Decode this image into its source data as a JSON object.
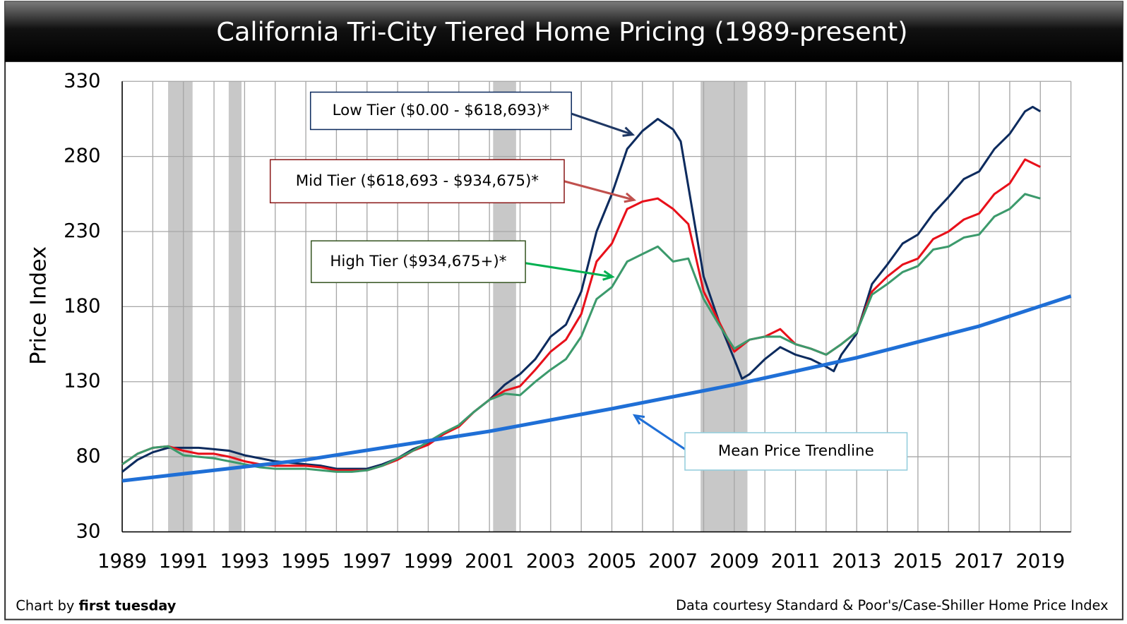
{
  "chart_data": {
    "type": "line",
    "title": "California Tri-City Tiered Home Pricing (1989-present)",
    "y_label": "Price Index",
    "credit_prefix": "Chart by",
    "credit_name": "first tuesday",
    "source": "Data courtesy Standard & Poor's/Case-Shiller Home Price Index",
    "xlim": [
      1989,
      2020
    ],
    "xticks": [
      1989,
      1991,
      1993,
      1995,
      1997,
      1999,
      2001,
      2003,
      2005,
      2007,
      2009,
      2011,
      2013,
      2015,
      2017,
      2019
    ],
    "x_minor_ticks": [
      1990,
      1992,
      1994,
      1996,
      1998,
      2000,
      2002,
      2004,
      2006,
      2008,
      2010,
      2012,
      2014,
      2016,
      2018,
      2020
    ],
    "ylim": [
      30,
      330
    ],
    "yticks": [
      30,
      80,
      130,
      180,
      230,
      280,
      330
    ],
    "grid": true,
    "shaded_periods": [
      [
        1990.5,
        1991.3
      ],
      [
        1992.48,
        1992.9
      ],
      [
        2001.12,
        2001.87
      ],
      [
        2007.9,
        2009.43
      ]
    ],
    "series": [
      {
        "name": "Low Tier ($0.00 - $618,693)*",
        "color": "#0d2b5e",
        "x": [
          1989,
          1989.5,
          1990,
          1990.5,
          1991,
          1991.5,
          1992,
          1992.5,
          1993,
          1993.5,
          1994,
          1994.5,
          1995,
          1995.5,
          1996,
          1996.5,
          1997,
          1997.5,
          1998,
          1998.5,
          1999,
          1999.5,
          2000,
          2000.5,
          2001,
          2001.5,
          2002,
          2002.5,
          2003,
          2003.5,
          2004,
          2004.5,
          2005,
          2005.5,
          2006,
          2006.5,
          2007,
          2007.25,
          2007.5,
          2008,
          2008.5,
          2009,
          2009.25,
          2009.5,
          2010,
          2010.5,
          2011,
          2011.5,
          2012,
          2012.25,
          2012.5,
          2013,
          2013.5,
          2014,
          2014.5,
          2015,
          2015.5,
          2016,
          2016.5,
          2017,
          2017.5,
          2018,
          2018.5,
          2018.75,
          2019
        ],
        "values": [
          70,
          78,
          83,
          86,
          86,
          86,
          85,
          84,
          81,
          79,
          77,
          76,
          75,
          74,
          72,
          72,
          72,
          75,
          79,
          85,
          89,
          95,
          101,
          110,
          118,
          128,
          135,
          145,
          160,
          168,
          190,
          230,
          255,
          285,
          297,
          305,
          298,
          290,
          260,
          200,
          170,
          145,
          132,
          135,
          145,
          153,
          148,
          145,
          140,
          137,
          148,
          162,
          195,
          208,
          222,
          228,
          242,
          253,
          265,
          270,
          285,
          295,
          310,
          313,
          310
        ]
      },
      {
        "name": "Mid Tier ($618,693 - $934,675)*",
        "color": "#e8101a",
        "x": [
          1989,
          1989.5,
          1990,
          1990.5,
          1991,
          1991.5,
          1992,
          1992.5,
          1993,
          1993.5,
          1994,
          1994.5,
          1995,
          1995.5,
          1996,
          1996.5,
          1997,
          1997.5,
          1998,
          1998.5,
          1999,
          1999.5,
          2000,
          2000.5,
          2001,
          2001.5,
          2002,
          2002.5,
          2003,
          2003.5,
          2004,
          2004.5,
          2005,
          2005.5,
          2006,
          2006.5,
          2007,
          2007.5,
          2008,
          2008.5,
          2009,
          2009.5,
          2010,
          2010.5,
          2011,
          2011.5,
          2012,
          2012.5,
          2013,
          2013.5,
          2014,
          2014.5,
          2015,
          2015.5,
          2016,
          2016.5,
          2017,
          2017.5,
          2018,
          2018.5,
          2019
        ],
        "values": [
          75,
          82,
          86,
          87,
          84,
          82,
          82,
          80,
          77,
          75,
          74,
          74,
          74,
          73,
          71,
          71,
          71,
          74,
          78,
          84,
          88,
          95,
          100,
          110,
          118,
          124,
          127,
          138,
          150,
          158,
          175,
          210,
          222,
          245,
          250,
          252,
          245,
          235,
          190,
          170,
          150,
          158,
          160,
          165,
          155,
          152,
          148,
          155,
          163,
          190,
          200,
          208,
          212,
          225,
          230,
          238,
          242,
          255,
          262,
          278,
          273
        ]
      },
      {
        "name": "High Tier ($934,675+)*",
        "color": "#3c9a6c",
        "x": [
          1989,
          1989.5,
          1990,
          1990.5,
          1991,
          1991.5,
          1992,
          1992.5,
          1993,
          1993.5,
          1994,
          1994.5,
          1995,
          1995.5,
          1996,
          1996.5,
          1997,
          1997.5,
          1998,
          1998.5,
          1999,
          1999.5,
          2000,
          2000.5,
          2001,
          2001.5,
          2002,
          2002.5,
          2003,
          2003.5,
          2004,
          2004.5,
          2005,
          2005.5,
          2006,
          2006.5,
          2007,
          2007.5,
          2008,
          2008.5,
          2009,
          2009.5,
          2010,
          2010.5,
          2011,
          2011.5,
          2012,
          2012.5,
          2013,
          2013.5,
          2014,
          2014.5,
          2015,
          2015.5,
          2016,
          2016.5,
          2017,
          2017.5,
          2018,
          2018.5,
          2019
        ],
        "values": [
          75,
          82,
          86,
          87,
          81,
          80,
          79,
          77,
          75,
          73,
          72,
          72,
          72,
          71,
          70,
          70,
          71,
          74,
          79,
          84,
          90,
          96,
          101,
          110,
          118,
          122,
          121,
          130,
          138,
          145,
          160,
          185,
          193,
          210,
          215,
          220,
          210,
          212,
          185,
          168,
          152,
          158,
          160,
          160,
          155,
          152,
          148,
          155,
          163,
          188,
          195,
          203,
          207,
          218,
          220,
          226,
          228,
          240,
          245,
          255,
          252
        ]
      },
      {
        "name": "Mean Price Trendline",
        "color": "#1f6fd6",
        "x": [
          1989,
          1995,
          2001,
          2005,
          2009,
          2013,
          2017,
          2020
        ],
        "values": [
          64,
          78,
          97,
          112,
          128,
          146,
          167,
          187
        ]
      }
    ]
  }
}
